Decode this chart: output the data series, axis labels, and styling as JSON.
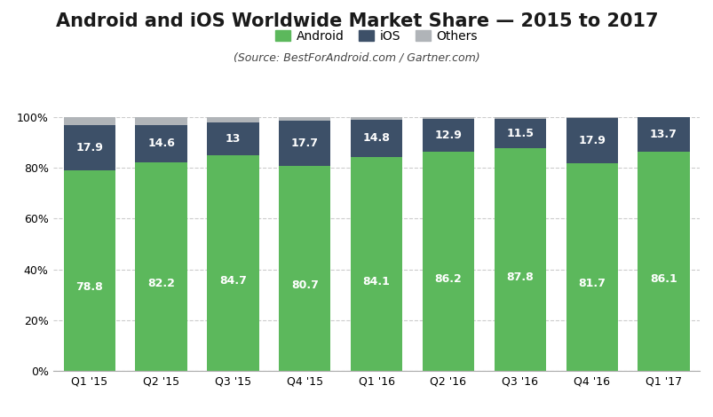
{
  "title": "Android and iOS Worldwide Market Share — 2015 to 2017",
  "subtitle": "(Source: BestForAndroid.com / Gartner.com)",
  "categories": [
    "Q1 '15",
    "Q2 '15",
    "Q3 '15",
    "Q4 '15",
    "Q1 '16",
    "Q2 '16",
    "Q3 '16",
    "Q4 '16",
    "Q1 '17"
  ],
  "android": [
    78.8,
    82.2,
    84.7,
    80.7,
    84.1,
    86.2,
    87.8,
    81.7,
    86.1
  ],
  "ios": [
    17.9,
    14.6,
    13.0,
    17.7,
    14.8,
    12.9,
    11.5,
    17.9,
    13.7
  ],
  "others": [
    3.3,
    3.2,
    2.3,
    1.6,
    1.1,
    0.9,
    0.7,
    0.4,
    0.2
  ],
  "android_color": "#5cb85c",
  "ios_color": "#3d5068",
  "others_color": "#b0b4b8",
  "android_label": "Android",
  "ios_label": "iOS",
  "others_label": "Others",
  "title_fontsize": 15,
  "subtitle_fontsize": 9,
  "bar_label_fontsize": 9,
  "legend_fontsize": 10,
  "tick_fontsize": 9,
  "background_color": "#ffffff",
  "plot_bg_color": "#ffffff",
  "grid_color": "#cccccc",
  "ylim": [
    0,
    100
  ]
}
